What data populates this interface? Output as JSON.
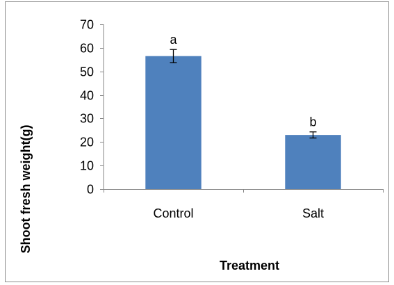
{
  "chart_data": {
    "type": "bar",
    "title": "",
    "xlabel": "Treatment",
    "ylabel": "Shoot fresh weight(g)",
    "categories": [
      "Control",
      "Salt"
    ],
    "values": [
      56.5,
      23
    ],
    "errors": [
      2.8,
      1.3
    ],
    "significance_letters": [
      "a",
      "b"
    ],
    "ylim": [
      0,
      70
    ],
    "yticks": [
      0,
      10,
      20,
      30,
      40,
      50,
      60,
      70
    ],
    "grid": false,
    "legend": "none",
    "bar_color": "#4f81bd",
    "axis_color": "#868686"
  }
}
